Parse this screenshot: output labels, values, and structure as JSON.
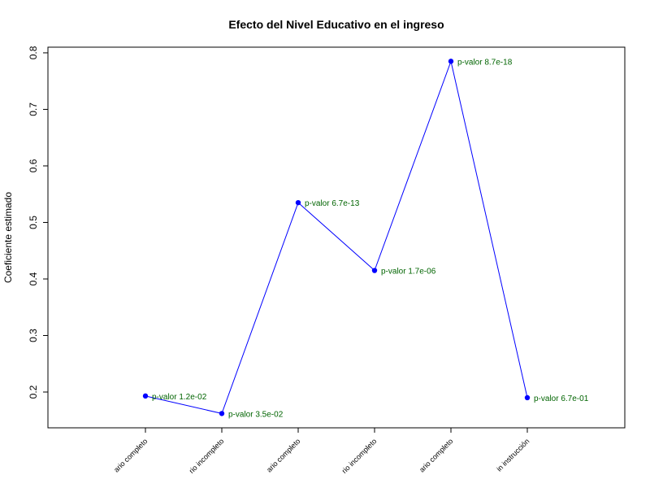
{
  "chart_data": {
    "type": "line",
    "title": "Efecto del Nivel Educativo en el ingreso",
    "y_label": "Coeficiente estimado",
    "categories": [
      "ario completo",
      "rio incompleto",
      "ario completo",
      "rio incompleto",
      "ario completo",
      "in instrucción"
    ],
    "values": [
      0.193,
      0.162,
      0.535,
      0.415,
      0.785,
      0.19
    ],
    "annotations": [
      "p-valor 1.2e-02",
      "p-valor 3.5e-02",
      "p-valor 6.7e-13",
      "p-valor 1.7e-06",
      "p-valor 8.7e-18",
      "p-valor 6.7e-01"
    ],
    "color": "#0000ff",
    "annotation_color": "#006400",
    "ylim": [
      0.1367,
      0.81
    ],
    "yticks": [
      0.2,
      0.3,
      0.4,
      0.5,
      0.6,
      0.7,
      0.8
    ]
  }
}
